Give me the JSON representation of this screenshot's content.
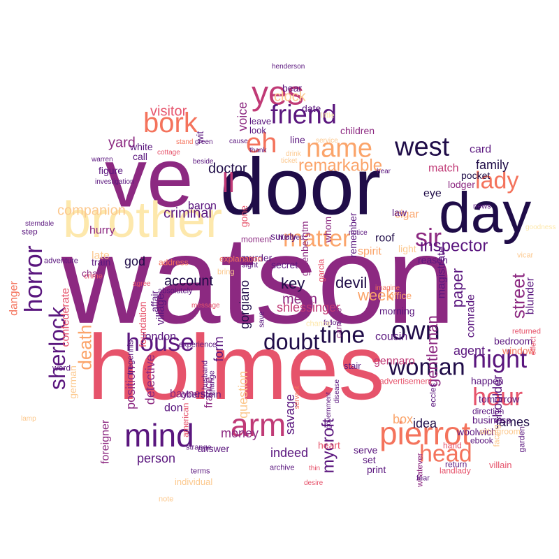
{
  "title": "",
  "colors": {
    "deep": "#1f0c48",
    "purple": "#5a167e",
    "magenta": "#8c2981",
    "rose": "#c03a76",
    "coral": "#e6536b",
    "salmon": "#f4735c",
    "orange": "#fba46a",
    "peach": "#fcc98f",
    "cream": "#fde8ac"
  },
  "words": [
    {
      "text": "watson",
      "color": "magenta"
    },
    {
      "text": "holmes",
      "color": "coral"
    },
    {
      "text": "door",
      "color": "deep"
    },
    {
      "text": "ve",
      "color": "magenta"
    },
    {
      "text": "brother",
      "color": "cream"
    },
    {
      "text": "day",
      "color": "deep"
    },
    {
      "text": "pierrot",
      "color": "salmon"
    },
    {
      "text": "mind",
      "color": "purple"
    },
    {
      "text": "arm",
      "color": "rose"
    },
    {
      "text": "bork",
      "color": "salmon"
    },
    {
      "text": "yes",
      "color": "rose"
    },
    {
      "text": "eh",
      "color": "salmon"
    },
    {
      "text": "name",
      "color": "orange"
    },
    {
      "text": "friend",
      "color": "purple"
    },
    {
      "text": "west",
      "color": "deep"
    },
    {
      "text": "horror",
      "color": "purple"
    },
    {
      "text": "lady",
      "color": "salmon"
    },
    {
      "text": "hour",
      "color": "coral"
    },
    {
      "text": "night",
      "color": "purple"
    },
    {
      "text": "house",
      "color": "purple"
    },
    {
      "text": "sherlock",
      "color": "purple"
    },
    {
      "text": "time",
      "color": "deep"
    },
    {
      "text": "own",
      "color": "deep"
    },
    {
      "text": "doubt",
      "color": "deep"
    },
    {
      "text": "ll",
      "color": "rose"
    },
    {
      "text": "matter",
      "color": "orange"
    },
    {
      "text": "sir",
      "color": "magenta"
    },
    {
      "text": "woman",
      "color": "deep"
    },
    {
      "text": "head",
      "color": "salmon"
    },
    {
      "text": "death",
      "color": "orange"
    },
    {
      "text": "street",
      "color": "magenta"
    },
    {
      "text": "remarkable",
      "color": "orange"
    },
    {
      "text": "inspector",
      "color": "purple"
    },
    {
      "text": "mycroft",
      "color": "purple"
    },
    {
      "text": "clock",
      "color": "peach"
    },
    {
      "text": "visitor",
      "color": "coral"
    },
    {
      "text": "yard",
      "color": "magenta"
    },
    {
      "text": "companion",
      "color": "peach"
    },
    {
      "text": "criminal",
      "color": "purple"
    },
    {
      "text": "doctor",
      "color": "deep"
    },
    {
      "text": "voice",
      "color": "magenta"
    },
    {
      "text": "family",
      "color": "deep"
    },
    {
      "text": "paper",
      "color": "purple"
    },
    {
      "text": "gentleman",
      "color": "magenta"
    },
    {
      "text": "week",
      "color": "orange"
    },
    {
      "text": "devil",
      "color": "deep"
    },
    {
      "text": "key",
      "color": "deep"
    },
    {
      "text": "account",
      "color": "deep"
    },
    {
      "text": "god",
      "color": "deep"
    },
    {
      "text": "mean",
      "color": "magenta"
    },
    {
      "text": "shlessinger",
      "color": "rose"
    },
    {
      "text": "gorgiano",
      "color": "deep"
    },
    {
      "text": "savage",
      "color": "purple"
    },
    {
      "text": "question",
      "color": "peach"
    },
    {
      "text": "form",
      "color": "purple"
    },
    {
      "text": "detective",
      "color": "magenta"
    },
    {
      "text": "position",
      "color": "magenta"
    },
    {
      "text": "agent",
      "color": "purple"
    },
    {
      "text": "shoulder",
      "color": "purple"
    },
    {
      "text": "idea",
      "color": "deep"
    },
    {
      "text": "james",
      "color": "deep"
    },
    {
      "text": "money",
      "color": "magenta"
    },
    {
      "text": "person",
      "color": "purple"
    },
    {
      "text": "indeed",
      "color": "purple"
    },
    {
      "text": "box",
      "color": "orange"
    },
    {
      "text": "baron",
      "color": "purple"
    },
    {
      "text": "village",
      "color": "purple"
    },
    {
      "text": "london",
      "color": "purple"
    },
    {
      "text": "confederate",
      "color": "coral"
    },
    {
      "text": "danger",
      "color": "salmon"
    },
    {
      "text": "late",
      "color": "peach"
    },
    {
      "text": "hurry",
      "color": "magenta"
    },
    {
      "text": "roof",
      "color": "deep"
    },
    {
      "text": "spirit",
      "color": "orange"
    },
    {
      "text": "cousin",
      "color": "purple"
    },
    {
      "text": "comrade",
      "color": "purple"
    },
    {
      "text": "blunder",
      "color": "purple"
    },
    {
      "text": "magistrate",
      "color": "purple"
    },
    {
      "text": "cigar",
      "color": "orange"
    },
    {
      "text": "eye",
      "color": "deep"
    },
    {
      "text": "card",
      "color": "purple"
    },
    {
      "text": "match",
      "color": "rose"
    },
    {
      "text": "lodger",
      "color": "magenta"
    },
    {
      "text": "pocket",
      "color": "deep"
    },
    {
      "text": "children",
      "color": "magenta"
    },
    {
      "text": "date",
      "color": "purple"
    },
    {
      "text": "bear",
      "color": "purple"
    },
    {
      "text": "look",
      "color": "purple"
    },
    {
      "text": "leave",
      "color": "purple"
    },
    {
      "text": "line",
      "color": "purple"
    },
    {
      "text": "figure",
      "color": "purple"
    },
    {
      "text": "call",
      "color": "purple"
    },
    {
      "text": "white",
      "color": "purple"
    },
    {
      "text": "wit",
      "color": "purple"
    },
    {
      "text": "foundation",
      "color": "coral"
    },
    {
      "text": "affair",
      "color": "purple"
    },
    {
      "text": "gone",
      "color": "coral"
    },
    {
      "text": "surely",
      "color": "purple"
    },
    {
      "text": "law",
      "color": "purple"
    },
    {
      "text": "whom",
      "color": "magenta"
    },
    {
      "text": "remember",
      "color": "purple"
    },
    {
      "text": "gutenbergtm",
      "color": "magenta"
    },
    {
      "text": "murder",
      "color": "purple"
    },
    {
      "text": "secret",
      "color": "purple"
    },
    {
      "text": "office",
      "color": "orange"
    },
    {
      "text": "morning",
      "color": "purple"
    },
    {
      "text": "reason",
      "color": "purple"
    },
    {
      "text": "light",
      "color": "peach"
    },
    {
      "text": "garcia",
      "color": "coral"
    },
    {
      "text": "carriage",
      "color": "magenta"
    },
    {
      "text": "moment",
      "color": "magenta"
    },
    {
      "text": "explanation",
      "color": "salmon"
    },
    {
      "text": "address",
      "color": "salmon"
    },
    {
      "text": "chair",
      "color": "magenta"
    },
    {
      "text": "train",
      "color": "purple"
    },
    {
      "text": "adventure",
      "color": "purple"
    },
    {
      "text": "crime",
      "color": "coral"
    },
    {
      "text": "step",
      "color": "purple"
    },
    {
      "text": "sterndale",
      "color": "purple"
    },
    {
      "text": "agree",
      "color": "coral"
    },
    {
      "text": "absolutely",
      "color": "purple"
    },
    {
      "text": "message",
      "color": "coral"
    },
    {
      "text": "experience",
      "color": "purple"
    },
    {
      "text": "tregennis",
      "color": "purple"
    },
    {
      "text": "word",
      "color": "purple"
    },
    {
      "text": "lamp",
      "color": "peach"
    },
    {
      "text": "german",
      "color": "peach"
    },
    {
      "text": "foreigner",
      "color": "magenta"
    },
    {
      "text": "france",
      "color": "magenta"
    },
    {
      "text": "baynes",
      "color": "magenta"
    },
    {
      "text": "don",
      "color": "purple"
    },
    {
      "text": "oberstein",
      "color": "purple"
    },
    {
      "text": "american",
      "color": "coral"
    },
    {
      "text": "servant",
      "color": "salmon"
    },
    {
      "text": "disease",
      "color": "purple"
    },
    {
      "text": "government",
      "color": "purple"
    },
    {
      "text": "change",
      "color": "purple"
    },
    {
      "text": "husband",
      "color": "purple"
    },
    {
      "text": "stair",
      "color": "purple"
    },
    {
      "text": "advertisement",
      "color": "coral"
    },
    {
      "text": "gennaro",
      "color": "rose"
    },
    {
      "text": "eccles",
      "color": "purple"
    },
    {
      "text": "happen",
      "color": "purple"
    },
    {
      "text": "business",
      "color": "purple"
    },
    {
      "text": "tomorrow",
      "color": "purple"
    },
    {
      "text": "direction",
      "color": "purple"
    },
    {
      "text": "woolwich",
      "color": "purple"
    },
    {
      "text": "hand",
      "color": "coral"
    },
    {
      "text": "return",
      "color": "purple"
    },
    {
      "text": "facing",
      "color": "peach"
    },
    {
      "text": "villain",
      "color": "coral"
    },
    {
      "text": "garden",
      "color": "purple"
    },
    {
      "text": "ebook",
      "color": "purple"
    },
    {
      "text": "sittingroom",
      "color": "peach"
    },
    {
      "text": "landlady",
      "color": "coral"
    },
    {
      "text": "whatever",
      "color": "magenta"
    },
    {
      "text": "fear",
      "color": "purple"
    },
    {
      "text": "set",
      "color": "purple"
    },
    {
      "text": "serve",
      "color": "purple"
    },
    {
      "text": "print",
      "color": "purple"
    },
    {
      "text": "heart",
      "color": "coral"
    },
    {
      "text": "desire",
      "color": "coral"
    },
    {
      "text": "thin",
      "color": "coral"
    },
    {
      "text": "archive",
      "color": "purple"
    },
    {
      "text": "terms",
      "color": "purple"
    },
    {
      "text": "strange",
      "color": "purple"
    },
    {
      "text": "note",
      "color": "peach"
    },
    {
      "text": "individual",
      "color": "peach"
    },
    {
      "text": "answer",
      "color": "purple"
    },
    {
      "text": "window",
      "color": "salmon"
    },
    {
      "text": "bedroom",
      "color": "purple"
    },
    {
      "text": "returned",
      "color": "coral"
    },
    {
      "text": "effect",
      "color": "coral"
    },
    {
      "text": "vicar",
      "color": "peach"
    },
    {
      "text": "goodness",
      "color": "cream"
    },
    {
      "text": "news",
      "color": "purple"
    },
    {
      "text": "imagine",
      "color": "salmon"
    },
    {
      "text": "follow",
      "color": "purple"
    },
    {
      "text": "chance",
      "color": "cream"
    },
    {
      "text": "save",
      "color": "purple"
    },
    {
      "text": "bring",
      "color": "peach"
    },
    {
      "text": "sight",
      "color": "purple"
    },
    {
      "text": "notice",
      "color": "purple"
    },
    {
      "text": "hundred",
      "color": "purple"
    },
    {
      "text": "beside",
      "color": "purple"
    },
    {
      "text": "ticket",
      "color": "peach"
    },
    {
      "text": "thank",
      "color": "purple"
    },
    {
      "text": "cause",
      "color": "purple"
    },
    {
      "text": "stand",
      "color": "salmon"
    },
    {
      "text": "green",
      "color": "purple"
    },
    {
      "text": "cottage",
      "color": "coral"
    },
    {
      "text": "warren",
      "color": "purple"
    },
    {
      "text": "investigation",
      "color": "purple"
    },
    {
      "text": "henderson",
      "color": "purple"
    },
    {
      "text": "drink",
      "color": "peach"
    },
    {
      "text": "service",
      "color": "peach"
    },
    {
      "text": "little",
      "color": "cream"
    },
    {
      "text": "hear",
      "color": "purple"
    }
  ]
}
